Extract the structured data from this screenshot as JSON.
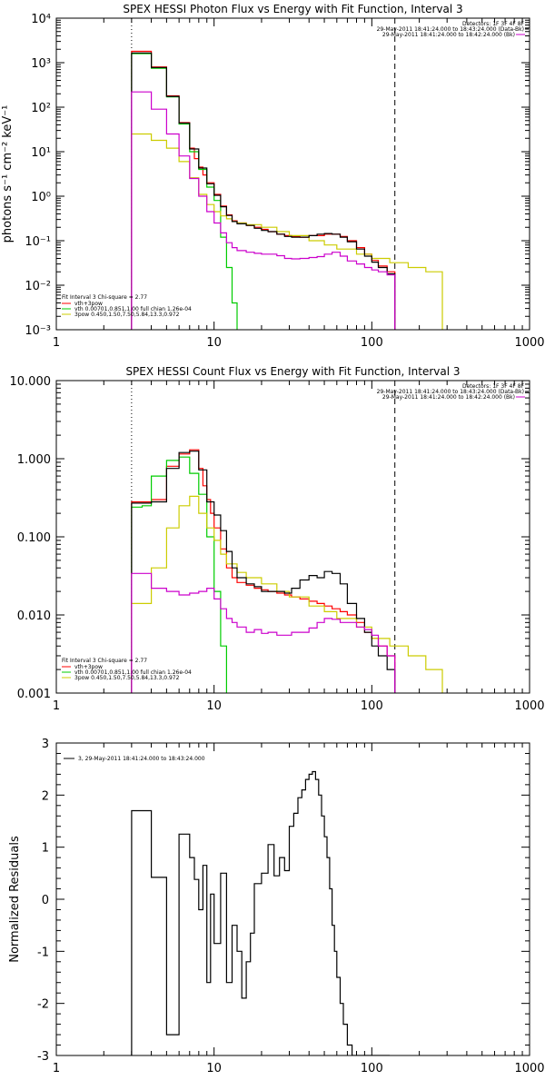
{
  "chart_data": [
    {
      "type": "line",
      "title": "SPEX HESSI Photon Flux vs Energy with Fit Function, Interval 3",
      "xlabel": "",
      "ylabel": "photons s^-1 cm^-2 keV^-1",
      "xscale": "log",
      "yscale": "log",
      "xlim": [
        1,
        1000
      ],
      "ylim": [
        0.001,
        10000
      ],
      "x_ticks": [
        "1",
        "10",
        "100",
        "1000"
      ],
      "y_ticks": [
        "10^-3",
        "10^-2",
        "10^-1",
        "10^0",
        "10^1",
        "10^2",
        "10^3",
        "10^4"
      ],
      "dotted_vline": 3,
      "dashed_vline": 140,
      "top_right_text": [
        "Detectors: 1F 3F 4F 8F",
        "29-May-2011 18:41:24.000 to 18:43:24.000 (Data-Bk)",
        "29-May-2011 18:41:24.000 to 18:42:24.000 (Bk)"
      ],
      "fit_text": "Fit Interval 3   Chi-square = 2.77",
      "legend_placement": "bottom-left",
      "series": [
        {
          "name": "vth+3pow",
          "color": "#ff0000",
          "x": [
            3,
            4,
            5,
            6,
            7,
            7.5,
            8,
            8.5,
            9,
            10,
            11,
            12,
            13,
            14,
            16,
            18,
            20,
            22,
            25,
            28,
            31,
            35,
            40,
            45,
            50,
            56,
            63,
            70,
            80,
            90,
            100,
            110,
            125,
            140
          ],
          "y": [
            1800,
            800,
            180,
            45,
            12,
            7,
            4.5,
            3,
            2,
            1.1,
            0.6,
            0.38,
            0.28,
            0.25,
            0.22,
            0.2,
            0.18,
            0.16,
            0.14,
            0.13,
            0.125,
            0.12,
            0.13,
            0.13,
            0.14,
            0.14,
            0.125,
            0.1,
            0.07,
            0.05,
            0.036,
            0.027,
            0.02,
            0.001
          ]
        },
        {
          "name": "vth 0.00701,0.851,1.00  full chian 1.26e-04",
          "color": "#00cc00",
          "x": [
            3,
            4,
            5,
            6,
            7,
            8,
            9,
            10,
            11,
            12,
            13,
            14
          ],
          "y": [
            1600,
            750,
            170,
            42,
            10,
            4,
            1.6,
            0.8,
            0.12,
            0.025,
            0.004,
            0.001
          ]
        },
        {
          "name": "3pow 0.450,1.50,7.50,5.84,13.3,0.972",
          "color": "#cccc00",
          "x": [
            3,
            4,
            5,
            6,
            7,
            8,
            9,
            10,
            11,
            12,
            13,
            14,
            16,
            20,
            25,
            30,
            40,
            50,
            60,
            80,
            100,
            130,
            170,
            220,
            280
          ],
          "y": [
            25,
            18,
            12,
            6,
            2.6,
            1.1,
            0.65,
            0.45,
            0.36,
            0.31,
            0.27,
            0.25,
            0.23,
            0.2,
            0.16,
            0.13,
            0.1,
            0.08,
            0.065,
            0.05,
            0.04,
            0.032,
            0.025,
            0.02,
            0.001
          ]
        },
        {
          "name": "data-bk",
          "color": "#000000",
          "x": [
            3,
            4,
            5,
            6,
            7,
            8,
            9,
            10,
            11,
            12,
            13,
            14,
            16,
            18,
            20,
            22,
            25,
            28,
            31,
            35,
            40,
            45,
            50,
            56,
            63,
            70,
            80,
            90,
            100,
            110,
            125,
            140
          ],
          "y": [
            1650,
            780,
            175,
            44,
            11.5,
            4.3,
            1.9,
            1.05,
            0.58,
            0.37,
            0.27,
            0.24,
            0.22,
            0.19,
            0.17,
            0.16,
            0.14,
            0.125,
            0.12,
            0.12,
            0.13,
            0.14,
            0.145,
            0.14,
            0.12,
            0.095,
            0.065,
            0.045,
            0.033,
            0.025,
            0.018,
            0.001
          ]
        },
        {
          "name": "bk",
          "color": "#cc00cc",
          "x": [
            3,
            4,
            5,
            6,
            7,
            8,
            9,
            10,
            11,
            12,
            13,
            14,
            16,
            18,
            20,
            22,
            25,
            28,
            31,
            35,
            40,
            45,
            50,
            56,
            63,
            70,
            80,
            90,
            100,
            110,
            125,
            140
          ],
          "y": [
            220,
            90,
            25,
            8,
            2.5,
            1.0,
            0.45,
            0.25,
            0.15,
            0.09,
            0.07,
            0.06,
            0.055,
            0.052,
            0.05,
            0.05,
            0.046,
            0.04,
            0.039,
            0.04,
            0.042,
            0.044,
            0.05,
            0.055,
            0.045,
            0.035,
            0.03,
            0.025,
            0.022,
            0.02,
            0.017,
            0.001
          ]
        }
      ]
    },
    {
      "type": "line",
      "title": "SPEX HESSI Count Flux vs Energy with Fit Function, Interval 3",
      "xlabel": "",
      "ylabel": "",
      "xscale": "log",
      "yscale": "log",
      "xlim": [
        1,
        1000
      ],
      "ylim": [
        0.001,
        10
      ],
      "x_ticks": [
        "1",
        "10",
        "100",
        "1000"
      ],
      "y_ticks": [
        "0.001",
        "0.010",
        "0.100",
        "1.000",
        "10.000"
      ],
      "dotted_vline": 3,
      "dashed_vline": 140,
      "top_right_text": [
        "Detectors: 1F 3F 4F 8F",
        "29-May-2011 18:41:24.000 to 18:43:24.000 (Data-Bk)",
        "29-May-2011 18:41:24.000 to 18:42:24.000 (Bk)"
      ],
      "fit_text": "Fit Interval 3   Chi-square = 2.77",
      "legend_placement": "bottom-left",
      "series": [
        {
          "name": "vth+3pow",
          "color": "#ff0000",
          "x": [
            3,
            4,
            5,
            6,
            7,
            8,
            8.5,
            9,
            9.5,
            10,
            11,
            12,
            13,
            14,
            16,
            18,
            20,
            22,
            25,
            28,
            31,
            35,
            40,
            45,
            50,
            56,
            63,
            70,
            80,
            90,
            100,
            110,
            125,
            140
          ],
          "y": [
            0.28,
            0.3,
            0.8,
            1.15,
            1.3,
            0.75,
            0.45,
            0.3,
            0.2,
            0.13,
            0.07,
            0.04,
            0.03,
            0.026,
            0.024,
            0.022,
            0.021,
            0.02,
            0.019,
            0.018,
            0.017,
            0.016,
            0.015,
            0.014,
            0.013,
            0.012,
            0.011,
            0.01,
            0.008,
            0.006,
            0.005,
            0.004,
            0.003,
            0.001
          ]
        },
        {
          "name": "vth 0.00701,0.851,1.00  full chian 1.26e-04",
          "color": "#00cc00",
          "x": [
            3,
            3.5,
            4,
            5,
            6,
            7,
            8,
            9,
            10,
            11,
            12
          ],
          "y": [
            0.24,
            0.25,
            0.6,
            0.95,
            1.05,
            0.65,
            0.35,
            0.1,
            0.02,
            0.004,
            0.001
          ]
        },
        {
          "name": "3pow 0.450,1.50,7.50,5.84,13.3,0.972",
          "color": "#cccc00",
          "x": [
            3,
            4,
            5,
            6,
            7,
            8,
            9,
            10,
            11,
            12,
            14,
            16,
            20,
            25,
            30,
            40,
            50,
            60,
            80,
            100,
            130,
            170,
            220,
            280
          ],
          "y": [
            0.014,
            0.04,
            0.13,
            0.25,
            0.33,
            0.2,
            0.13,
            0.09,
            0.06,
            0.045,
            0.035,
            0.03,
            0.025,
            0.02,
            0.017,
            0.013,
            0.011,
            0.009,
            0.007,
            0.005,
            0.004,
            0.003,
            0.002,
            0.001
          ]
        },
        {
          "name": "data-bk",
          "color": "#000000",
          "x": [
            3,
            4,
            5,
            6,
            7,
            8,
            9,
            10,
            11,
            12,
            13,
            14,
            16,
            18,
            20,
            22,
            25,
            28,
            31,
            35,
            40,
            45,
            50,
            56,
            63,
            70,
            80,
            90,
            100,
            110,
            125,
            140
          ],
          "y": [
            0.27,
            0.28,
            0.75,
            1.2,
            1.25,
            0.72,
            0.28,
            0.19,
            0.12,
            0.065,
            0.04,
            0.03,
            0.025,
            0.023,
            0.02,
            0.02,
            0.02,
            0.019,
            0.022,
            0.028,
            0.032,
            0.03,
            0.036,
            0.034,
            0.025,
            0.014,
            0.009,
            0.006,
            0.004,
            0.003,
            0.002,
            0.001
          ]
        },
        {
          "name": "bk",
          "color": "#cc00cc",
          "x": [
            3,
            4,
            5,
            6,
            7,
            8,
            9,
            10,
            11,
            12,
            13,
            14,
            16,
            18,
            20,
            22,
            25,
            28,
            31,
            35,
            40,
            45,
            50,
            56,
            63,
            70,
            80,
            90,
            100,
            110,
            125,
            140
          ],
          "y": [
            0.034,
            0.022,
            0.02,
            0.018,
            0.019,
            0.02,
            0.022,
            0.016,
            0.012,
            0.009,
            0.008,
            0.007,
            0.006,
            0.0065,
            0.0058,
            0.006,
            0.0055,
            0.0055,
            0.006,
            0.006,
            0.0068,
            0.008,
            0.009,
            0.0088,
            0.008,
            0.008,
            0.007,
            0.0065,
            0.0055,
            0.004,
            0.003,
            0.001
          ]
        }
      ]
    },
    {
      "type": "line",
      "title": "",
      "xlabel": "",
      "ylabel": "Normalized Residuals",
      "xscale": "log",
      "yscale": "linear",
      "xlim": [
        1,
        1000
      ],
      "ylim": [
        -3,
        3
      ],
      "x_ticks": [
        "1",
        "10",
        "100",
        "1000"
      ],
      "y_ticks": [
        "-3",
        "-2",
        "-1",
        "0",
        "1",
        "2",
        "3"
      ],
      "legend_placement": "top-left",
      "series": [
        {
          "name": "3, 29-May-2011 18:41:24.000 to 18:43:24.000",
          "color": "#000000",
          "x": [
            3,
            4,
            5,
            6,
            7,
            7.5,
            8,
            8.5,
            9,
            9.5,
            10,
            11,
            12,
            13,
            14,
            15,
            16,
            17,
            18,
            20,
            22,
            24,
            26,
            28,
            30,
            32,
            34,
            36,
            38,
            40,
            42,
            44,
            46,
            48,
            50,
            52,
            54,
            56,
            58,
            60,
            63,
            66,
            70,
            75,
            80,
            85,
            90,
            95,
            100,
            110,
            125,
            130
          ],
          "y": [
            1.7,
            0.42,
            -2.6,
            1.25,
            0.8,
            0.38,
            -0.2,
            0.65,
            -1.6,
            0.1,
            -0.85,
            0.5,
            -1.6,
            -0.5,
            -1.0,
            -1.9,
            -1.2,
            -0.65,
            0.3,
            0.5,
            1.05,
            0.45,
            0.8,
            0.55,
            1.4,
            1.65,
            1.95,
            2.1,
            2.3,
            2.4,
            2.45,
            2.3,
            2.0,
            1.6,
            1.2,
            0.8,
            0.2,
            -0.5,
            -1.0,
            -1.5,
            -2.0,
            -2.4,
            -2.8,
            -3.0,
            -3.0,
            -3.0,
            -3.0,
            -3.0,
            -3.0,
            -3.0,
            -3.0,
            -3.0
          ]
        }
      ]
    }
  ]
}
